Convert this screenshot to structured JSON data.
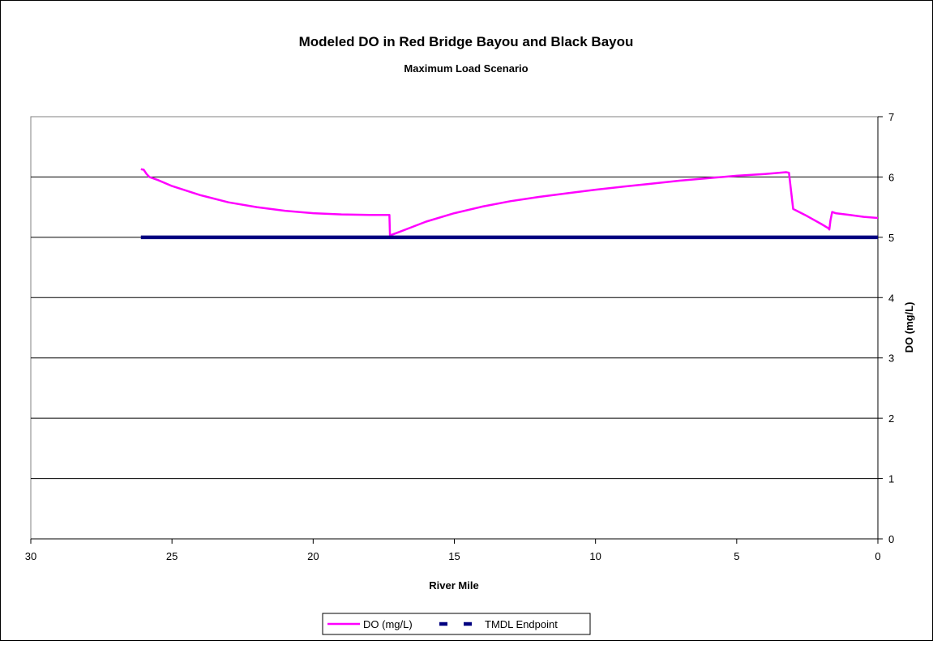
{
  "chart_data": {
    "type": "line",
    "title": "Modeled DO in Red Bridge Bayou and Black Bayou",
    "subtitle": "Maximum Load Scenario",
    "xlabel": "River Mile",
    "ylabel": "DO (mg/L)",
    "xlim": [
      30,
      0
    ],
    "ylim": [
      0,
      7
    ],
    "x_reversed": true,
    "y_axis_side": "right",
    "x_ticks": [
      "30",
      "25",
      "20",
      "15",
      "10",
      "5",
      "0"
    ],
    "y_ticks": [
      "0",
      "1",
      "2",
      "3",
      "4",
      "5",
      "6",
      "7"
    ],
    "grid": "horizontal",
    "legend_position": "bottom",
    "series": [
      {
        "name": "DO (mg/L)",
        "color": "#FF00FF",
        "points": [
          [
            26.1,
            6.13
          ],
          [
            26.0,
            6.12
          ],
          [
            25.9,
            6.05
          ],
          [
            25.8,
            6.0
          ],
          [
            25.5,
            5.95
          ],
          [
            25.0,
            5.85
          ],
          [
            24.0,
            5.7
          ],
          [
            23.0,
            5.58
          ],
          [
            22.0,
            5.5
          ],
          [
            21.0,
            5.44
          ],
          [
            20.0,
            5.4
          ],
          [
            19.0,
            5.38
          ],
          [
            18.0,
            5.37
          ],
          [
            17.45,
            5.37
          ],
          [
            17.3,
            5.37
          ],
          [
            17.28,
            5.03
          ],
          [
            17.0,
            5.08
          ],
          [
            16.0,
            5.26
          ],
          [
            15.0,
            5.4
          ],
          [
            14.0,
            5.51
          ],
          [
            13.0,
            5.6
          ],
          [
            12.0,
            5.67
          ],
          [
            11.0,
            5.73
          ],
          [
            10.0,
            5.79
          ],
          [
            9.0,
            5.84
          ],
          [
            8.0,
            5.89
          ],
          [
            7.0,
            5.94
          ],
          [
            6.0,
            5.98
          ],
          [
            5.0,
            6.02
          ],
          [
            4.0,
            6.05
          ],
          [
            3.25,
            6.08
          ],
          [
            3.15,
            6.07
          ],
          [
            3.0,
            5.47
          ],
          [
            2.5,
            5.35
          ],
          [
            2.0,
            5.22
          ],
          [
            1.75,
            5.15
          ],
          [
            1.72,
            5.13
          ],
          [
            1.68,
            5.28
          ],
          [
            1.62,
            5.42
          ],
          [
            1.5,
            5.4
          ],
          [
            1.0,
            5.37
          ],
          [
            0.5,
            5.34
          ],
          [
            0.0,
            5.32
          ]
        ]
      },
      {
        "name": "TMDL Endpoint",
        "color": "#000080",
        "points": [
          [
            26.1,
            5.0
          ],
          [
            0.0,
            5.0
          ]
        ]
      }
    ]
  }
}
